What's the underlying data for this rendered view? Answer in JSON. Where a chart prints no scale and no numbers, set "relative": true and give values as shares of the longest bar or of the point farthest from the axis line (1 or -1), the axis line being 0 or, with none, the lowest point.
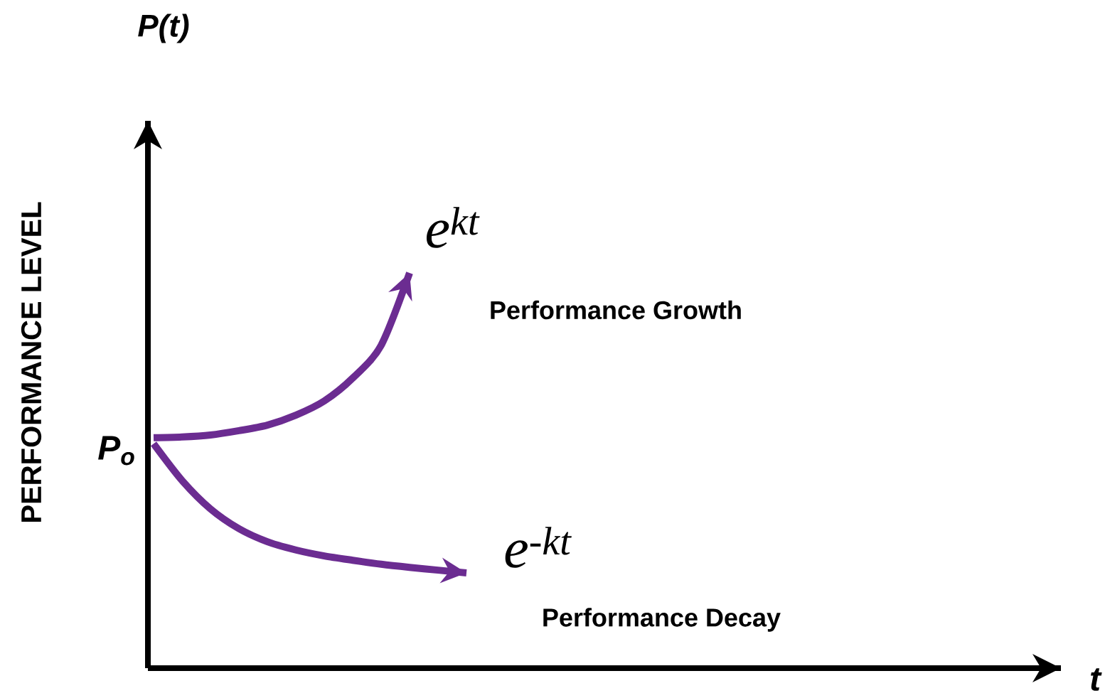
{
  "chart_data": {
    "type": "line",
    "relative": true,
    "title": "P(t)",
    "xlabel": "t",
    "ylabel": "PERFORMANCE LEVEL",
    "categories": [
      null,
      null,
      null,
      null,
      null,
      null,
      null,
      null,
      null,
      null,
      null,
      null,
      null,
      null,
      null,
      null,
      null,
      null,
      null,
      null,
      null,
      null,
      null,
      null,
      null,
      null,
      null,
      null,
      null,
      null,
      null,
      null
    ],
    "series": [
      {
        "color": "#6b2c91",
        "values": [
          0.583,
          0.585,
          0.59,
          0.601,
          0.615,
          0.64,
          0.676,
          0.734,
          0.817,
          1,
          null,
          null,
          null,
          null,
          null,
          null,
          null,
          null,
          null,
          null,
          null,
          null,
          null,
          null,
          null,
          null,
          null,
          null,
          null,
          null,
          null,
          null
        ]
      },
      {
        "color": "#6b2c91",
        "values": [
          0.568,
          0.475,
          0.403,
          0.353,
          0.32,
          0.299,
          0.284,
          0.273,
          0.263,
          0.255,
          0.248,
          0.241,
          null,
          null,
          null,
          null,
          null,
          null,
          null,
          null,
          null,
          null,
          null,
          null,
          null,
          null,
          null,
          null,
          null,
          null,
          null,
          null
        ]
      }
    ],
    "annotations": [
      "P$_{o}$",
      "e$^{kt}$",
      "Performance Growth",
      "e$^{-kt}$",
      "Performance Decay"
    ]
  }
}
